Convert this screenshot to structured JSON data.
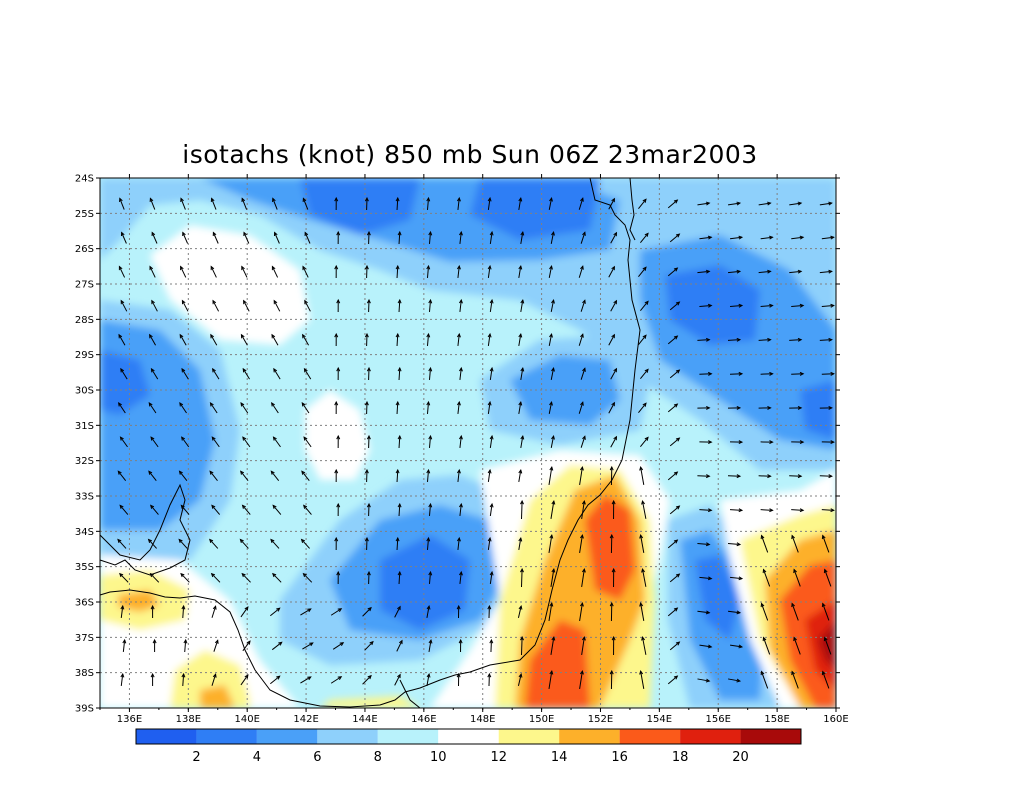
{
  "title": "isotachs (knot) 850 mb Sun 06Z 23mar2003",
  "lat_labels": [
    "24S",
    "25S",
    "26S",
    "27S",
    "28S",
    "29S",
    "30S",
    "31S",
    "32S",
    "33S",
    "34S",
    "35S",
    "36S",
    "37S",
    "38S",
    "39S"
  ],
  "lon_labels": [
    "136E",
    "138E",
    "140E",
    "142E",
    "144E",
    "146E",
    "148E",
    "150E",
    "152E",
    "154E",
    "156E",
    "158E",
    "160E"
  ],
  "colorbar": {
    "colors": [
      "#1f5ff0",
      "#2f7ef5",
      "#4aa0f8",
      "#8ed0fb",
      "#b8f2fb",
      "#ffffff",
      "#fdf78c",
      "#fdb02a",
      "#fb5a1a",
      "#e0200e",
      "#a80a0a"
    ],
    "labels": [
      "2",
      "4",
      "6",
      "8",
      "10",
      "12",
      "14",
      "16",
      "18",
      "20"
    ]
  }
}
